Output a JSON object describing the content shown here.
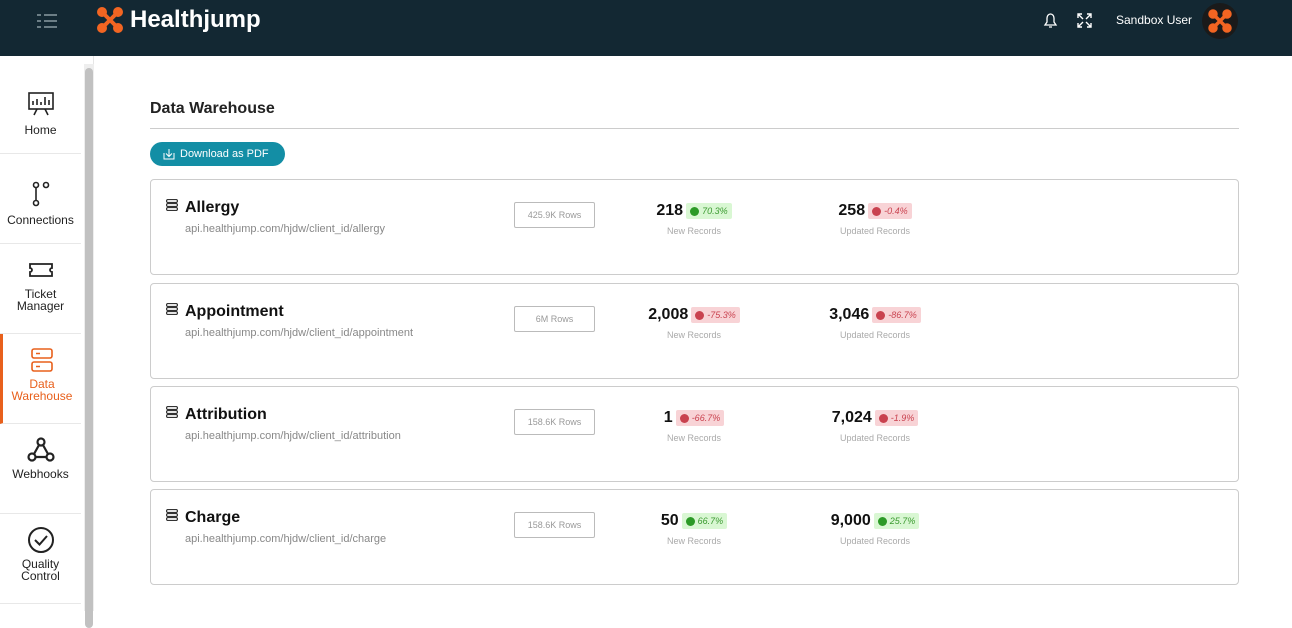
{
  "header": {
    "brand": "Healthjump",
    "user": "Sandbox User"
  },
  "nav": [
    {
      "label": "Home"
    },
    {
      "label": "Connections"
    },
    {
      "label": "Ticket Manager"
    },
    {
      "label": "Data Warehouse",
      "active": true
    },
    {
      "label": "Webhooks"
    },
    {
      "label": "Quality Control"
    }
  ],
  "main": {
    "title": "Data Warehouse",
    "download_button": "Download as PDF",
    "tables": [
      {
        "name": "Allergy",
        "url": "api.healthjump.com/hjdw/client_id/allergy",
        "rows": "425.9K Rows",
        "new_records": "218",
        "new_change": "70.3%",
        "new_label": "New Records",
        "updated_records": "258",
        "updated_change": "-0.4%",
        "updated_label": "Updated Records"
      },
      {
        "name": "Appointment",
        "url": "api.healthjump.com/hjdw/client_id/appointment",
        "rows": "6M Rows",
        "new_records": "2,008",
        "new_change": "-75.3%",
        "new_label": "New Records",
        "updated_records": "3,046",
        "updated_change": "-86.7%",
        "updated_label": "Updated Records"
      },
      {
        "name": "Attribution",
        "url": "api.healthjump.com/hjdw/client_id/attribution",
        "rows": "158.6K Rows",
        "new_records": "1",
        "new_change": "-66.7%",
        "new_label": "New Records",
        "updated_records": "7,024",
        "updated_change": "-1.9%",
        "updated_label": "Updated Records"
      },
      {
        "name": "Charge",
        "url": "api.healthjump.com/hjdw/client_id/charge",
        "rows": "158.6K Rows",
        "new_records": "50",
        "new_change": "66.7%",
        "new_label": "New Records",
        "updated_records": "9,000",
        "updated_change": "25.7%",
        "updated_label": "Updated Records"
      }
    ]
  }
}
